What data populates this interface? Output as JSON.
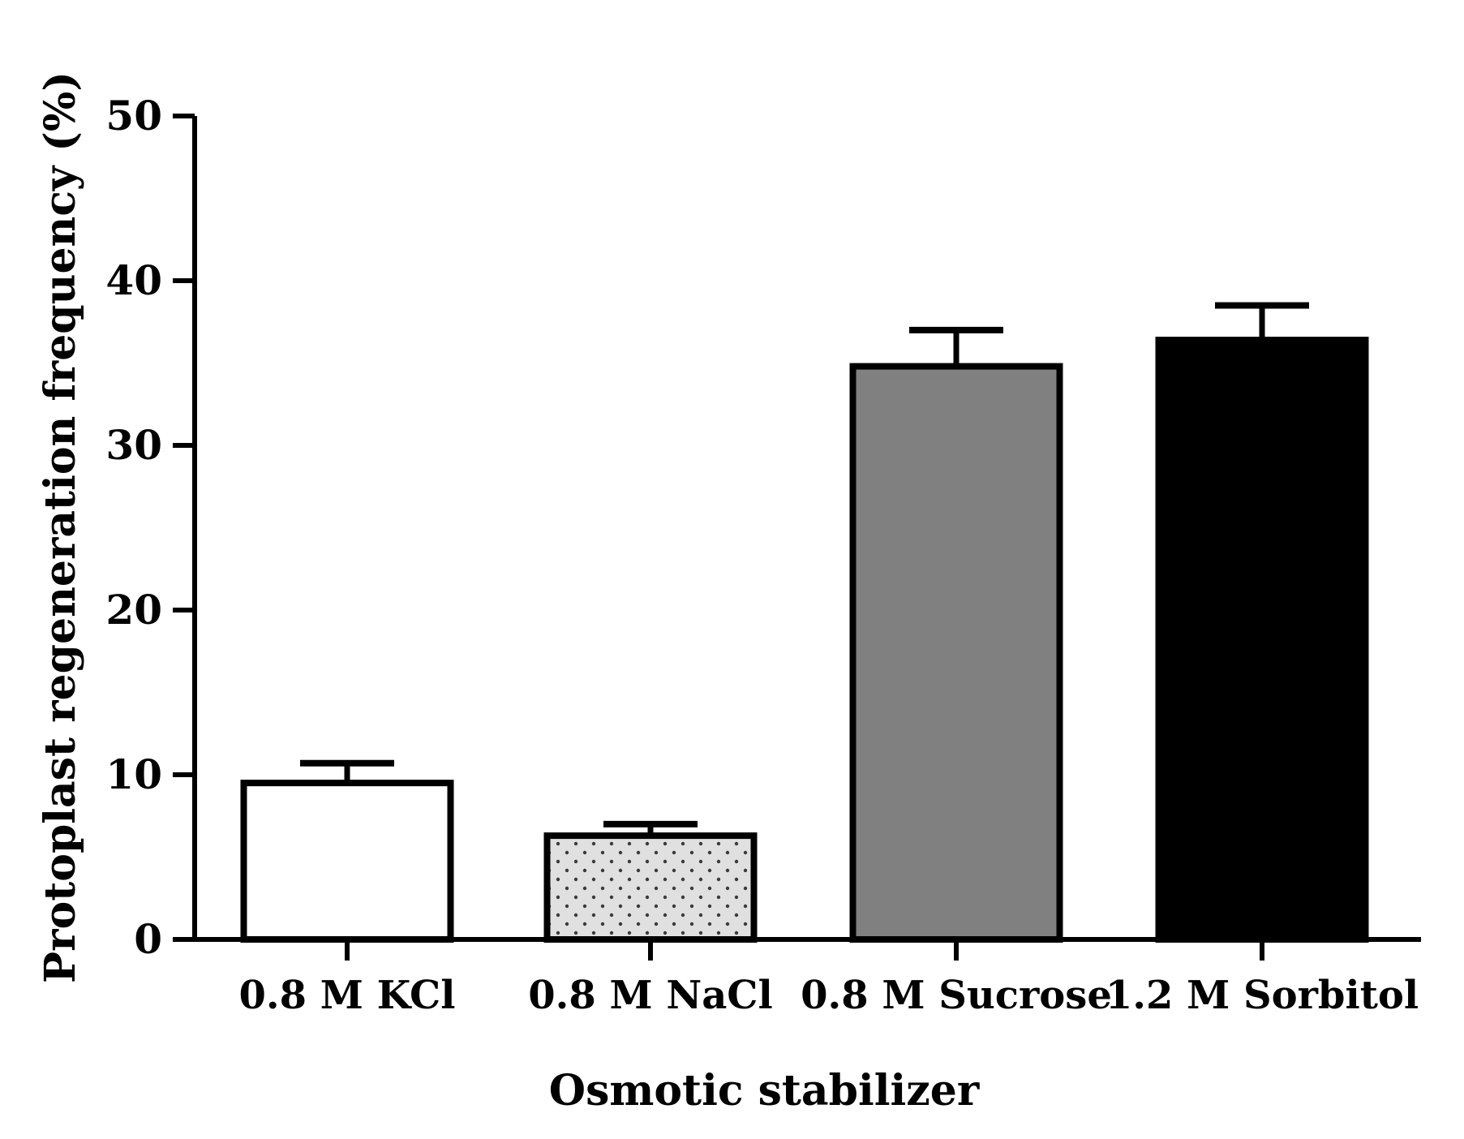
{
  "chart_data": {
    "type": "bar",
    "title": "",
    "xlabel": "Osmotic stabilizer",
    "ylabel": "Protoplast regeneration frequency (%)",
    "ylim": [
      0,
      50
    ],
    "yticks": [
      0,
      10,
      20,
      30,
      40,
      50
    ],
    "ytick_labels": [
      "0",
      "10",
      "20",
      "30",
      "40",
      "50"
    ],
    "grid": false,
    "legend": "none",
    "categories": [
      "0.8 M KCl",
      "0.8 M NaCl",
      "0.8 M Sucrose",
      "1.2 M Sorbitol"
    ],
    "values": [
      9.5,
      6.3,
      34.8,
      36.4
    ],
    "errors": [
      1.2,
      0.7,
      2.2,
      2.1
    ],
    "bar_fills": [
      "white",
      "dotted",
      "gray",
      "black"
    ],
    "colors": {
      "white": "#ffffff",
      "dotted_bg": "#e0e0e0",
      "dotted_dot": "#3a3a3a",
      "gray": "#808080",
      "black": "#000000",
      "stroke": "#000000"
    }
  }
}
